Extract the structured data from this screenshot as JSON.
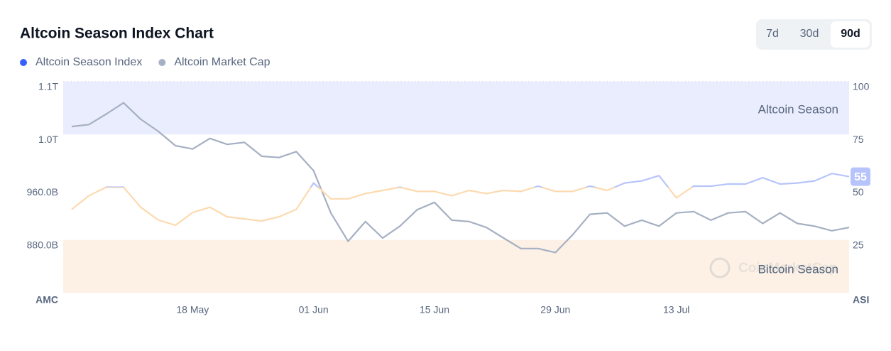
{
  "chart_data": {
    "type": "line",
    "title": "Altcoin Season Index Chart",
    "ranges": [
      "7d",
      "30d",
      "90d"
    ],
    "active_range": "90d",
    "categories": [
      null,
      null,
      null,
      null,
      null,
      null,
      null,
      "18 May",
      null,
      null,
      null,
      null,
      null,
      null,
      "01 Jun",
      null,
      null,
      null,
      null,
      null,
      null,
      "15 Jun",
      null,
      null,
      null,
      null,
      null,
      null,
      "29 Jun",
      null,
      null,
      null,
      null,
      null,
      null,
      "13 Jul",
      null,
      null,
      null,
      null,
      null,
      null,
      null,
      null,
      null,
      null
    ],
    "series": [
      {
        "name": "Altcoin Season Index",
        "color": "#3861fb",
        "axis": "y2",
        "line_colors": [
          "#b7c4fb",
          "#fcdab0"
        ],
        "values": [
          39.5,
          46,
          50,
          50,
          40.5,
          34.5,
          32,
          38,
          40.5,
          36,
          35,
          34,
          36,
          39.5,
          52,
          44.5,
          44.5,
          47,
          48.5,
          50,
          48,
          48,
          46,
          48.5,
          47,
          48.5,
          48,
          50.5,
          48,
          48,
          50.5,
          48.5,
          52,
          53,
          55.5,
          45,
          50.5,
          50.5,
          51.5,
          51.5,
          54.5,
          51.5,
          52,
          53,
          56.5,
          55
        ]
      },
      {
        "name": "Altcoin Market Cap",
        "color": "#a6b0c3",
        "values": [
          1052,
          1055,
          1071,
          1088,
          1063,
          1045,
          1023,
          1018,
          1034,
          1025,
          1028,
          1007,
          1005,
          1014,
          985,
          921,
          878,
          908,
          883,
          901,
          926,
          937,
          910,
          908,
          899,
          883,
          867,
          867,
          861,
          888,
          919,
          921,
          901,
          910,
          901,
          921,
          923,
          910,
          921,
          923,
          905,
          921,
          905,
          901,
          894,
          899
        ]
      }
    ],
    "y_label": "AMC",
    "y2_label": "ASI",
    "ylim": [
      800,
      1120
    ],
    "yticks": [
      {
        "value": 880,
        "label": "880.0B"
      },
      {
        "value": 960,
        "label": "960.0B"
      },
      {
        "value": 1040,
        "label": "1.0T"
      },
      {
        "value": 1120,
        "label": "1.1T"
      }
    ],
    "y2lim": [
      0,
      100
    ],
    "y2ticks": [
      25,
      50,
      75,
      100
    ],
    "bands": [
      {
        "label": "Altcoin Season",
        "from": 75,
        "to": 100,
        "color": "#eaedfd"
      },
      {
        "label": "Bitcoin Season",
        "from": 0,
        "to": 25,
        "color": "#fdf1e6"
      }
    ],
    "watermark": "CoinMarketCap"
  }
}
